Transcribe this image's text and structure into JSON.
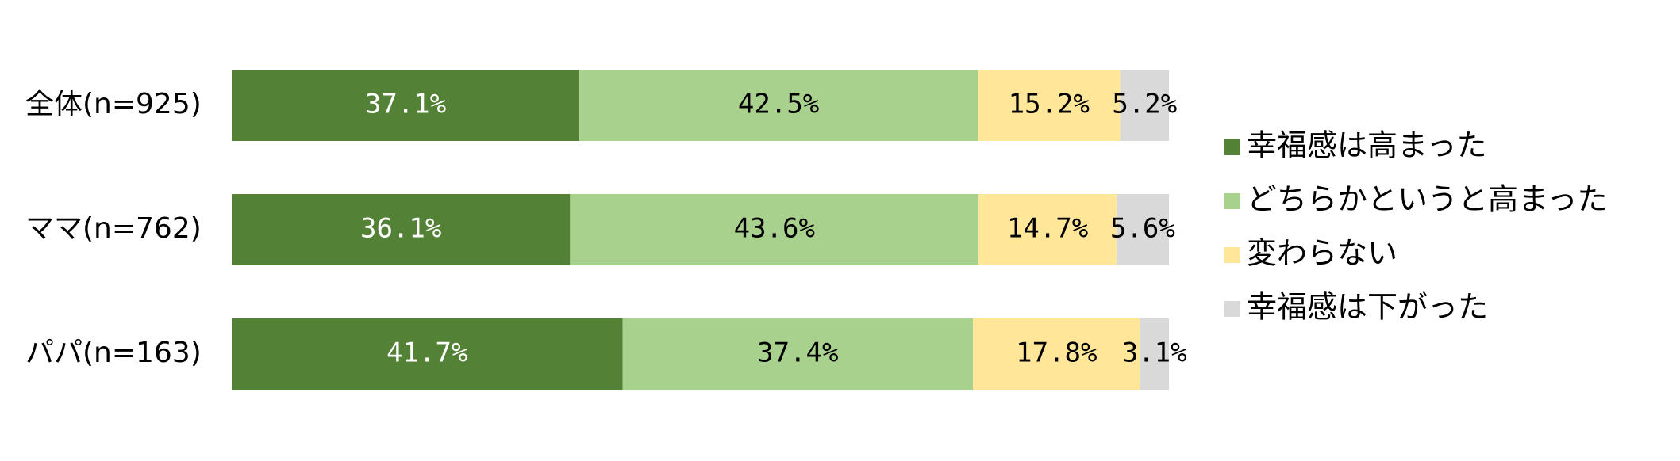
{
  "chart_data": {
    "type": "bar",
    "orientation": "horizontal",
    "stacked": true,
    "percent_stacked": true,
    "categories": [
      "全体(n=925)",
      "ママ(n=762)",
      "パパ(n=163)"
    ],
    "series": [
      {
        "name": "幸福感は高まった",
        "values": [
          37.1,
          36.1,
          41.7
        ],
        "color": "#538135",
        "label_color": "#ffffff"
      },
      {
        "name": "どちらかというと高まった",
        "values": [
          42.5,
          43.6,
          37.4
        ],
        "color": "#a9d18e",
        "label_color": "#000000"
      },
      {
        "name": "変わらない",
        "values": [
          15.2,
          14.7,
          17.8
        ],
        "color": "#ffe699",
        "label_color": "#000000"
      },
      {
        "name": "幸福感は下がった",
        "values": [
          5.2,
          5.6,
          3.1
        ],
        "color": "#d9d9d9",
        "label_color": "#000000"
      }
    ],
    "value_suffix": "%",
    "xlim": [
      0,
      100
    ],
    "grid": false,
    "legend_position": "right"
  }
}
